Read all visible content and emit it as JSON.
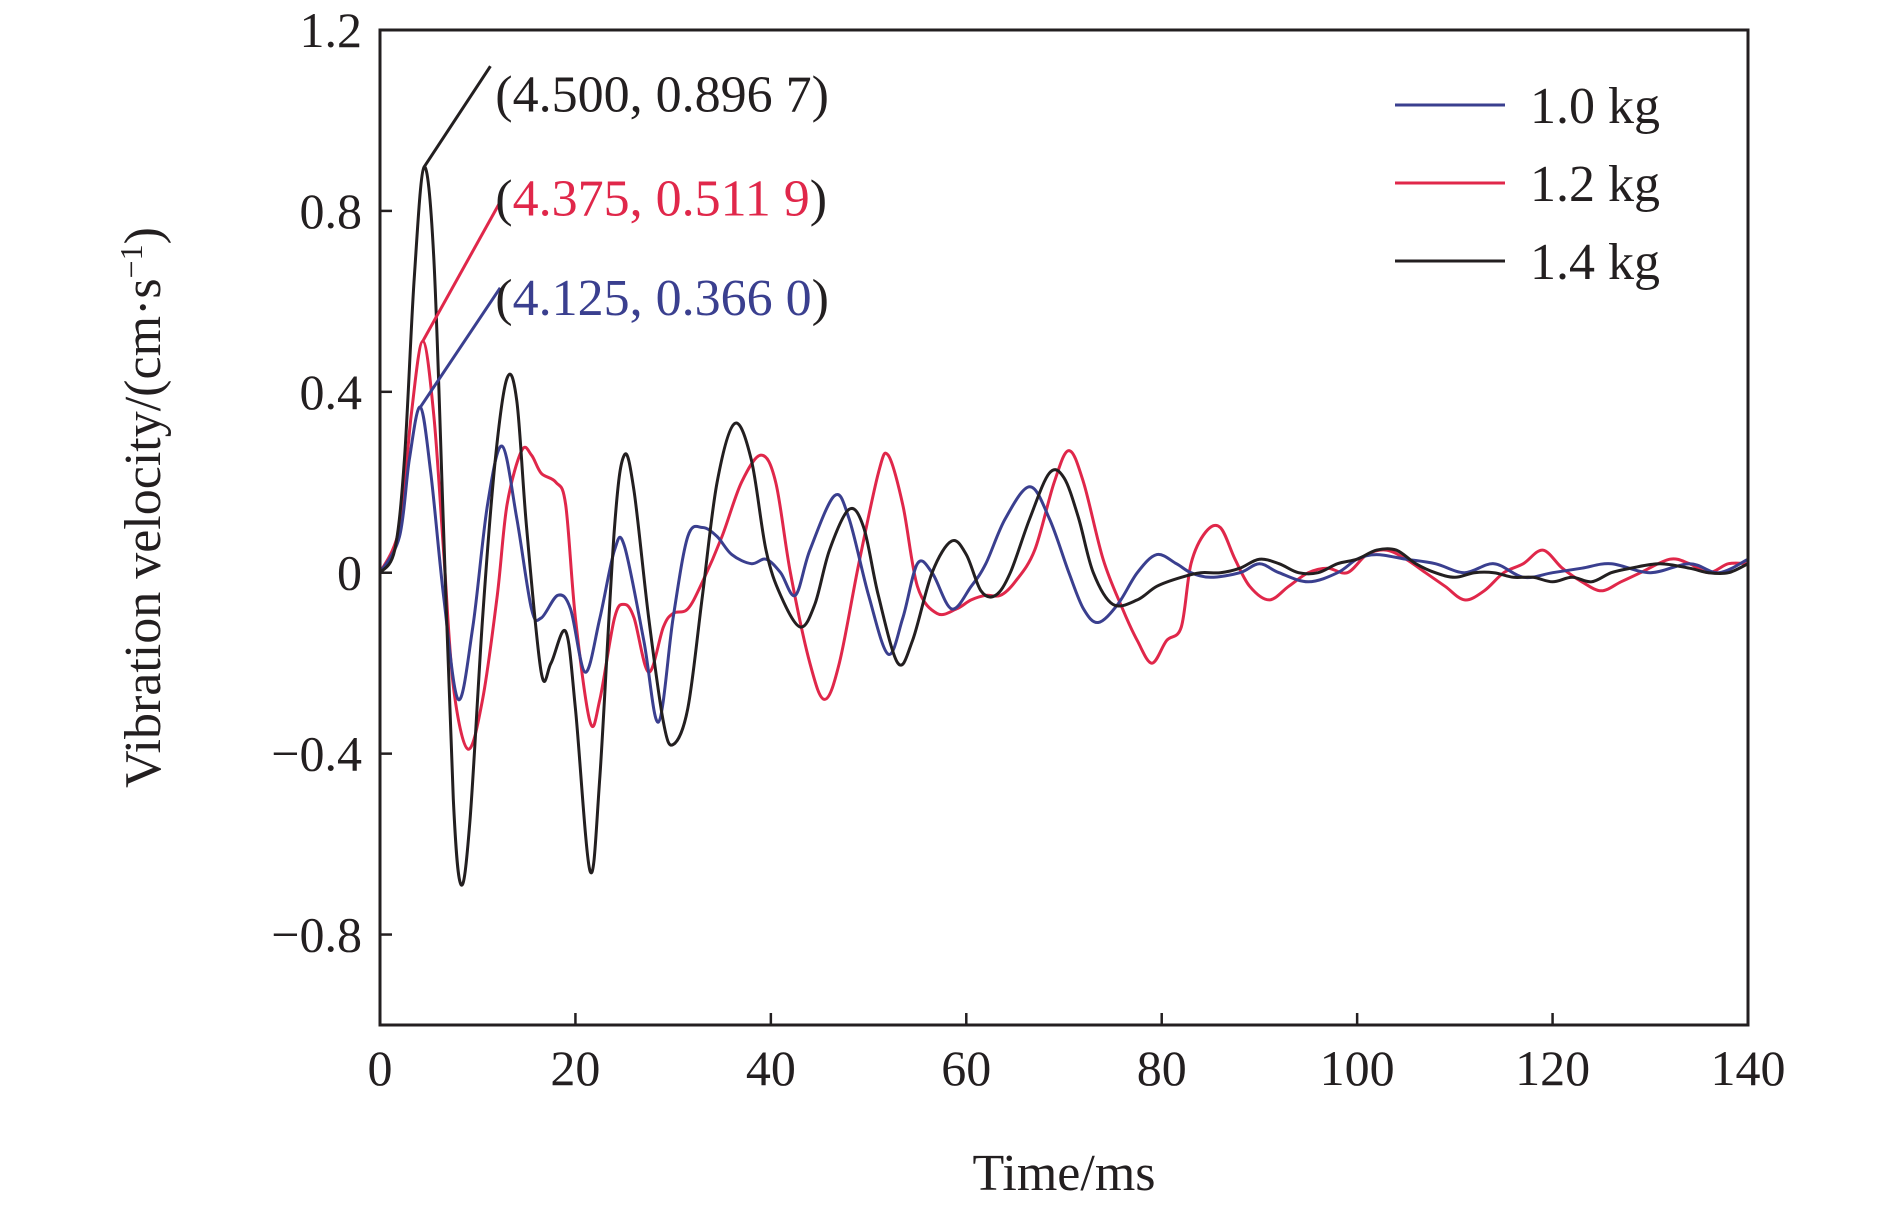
{
  "chart_data": {
    "type": "line",
    "xlabel": "Time/ms",
    "ylabel": "Vibration velocity/(cm·s",
    "ylabel_sup": "−1",
    "ylabel_close": ")",
    "xlim": [
      0,
      140
    ],
    "ylim": [
      -1.0,
      1.2
    ],
    "xticks": [
      0,
      20,
      40,
      60,
      80,
      100,
      120,
      140
    ],
    "xtick_labels": [
      "0",
      "20",
      "40",
      "60",
      "80",
      "100",
      "120",
      "140"
    ],
    "yticks": [
      -0.8,
      -0.4,
      0,
      0.4,
      0.8,
      1.2
    ],
    "ytick_labels": [
      "−0.8",
      "−0.4",
      "0",
      "0.4",
      "0.8",
      "1.2"
    ],
    "grid": false,
    "legend_position": "top-right",
    "series": [
      {
        "name": "1.0 kg",
        "color": "#3a3f8f",
        "points": [
          [
            0,
            0
          ],
          [
            2,
            0.08
          ],
          [
            3,
            0.25
          ],
          [
            4.125,
            0.366
          ],
          [
            5.2,
            0.22
          ],
          [
            6.5,
            -0.05
          ],
          [
            8,
            -0.28
          ],
          [
            9.5,
            -0.12
          ],
          [
            11,
            0.15
          ],
          [
            12.5,
            0.28
          ],
          [
            14,
            0.12
          ],
          [
            15.5,
            -0.08
          ],
          [
            16.5,
            -0.1
          ],
          [
            18.2,
            -0.05
          ],
          [
            19.5,
            -0.08
          ],
          [
            21,
            -0.22
          ],
          [
            22.5,
            -0.1
          ],
          [
            24,
            0.05
          ],
          [
            25,
            0.06
          ],
          [
            27,
            -0.15
          ],
          [
            28.5,
            -0.33
          ],
          [
            30,
            -0.1
          ],
          [
            31.5,
            0.08
          ],
          [
            33,
            0.1
          ],
          [
            34.5,
            0.08
          ],
          [
            36,
            0.04
          ],
          [
            38,
            0.02
          ],
          [
            39.5,
            0.03
          ],
          [
            41,
            0.0
          ],
          [
            42.5,
            -0.05
          ],
          [
            44,
            0.05
          ],
          [
            46.5,
            0.17
          ],
          [
            48,
            0.12
          ],
          [
            50,
            -0.05
          ],
          [
            52,
            -0.18
          ],
          [
            53.5,
            -0.1
          ],
          [
            55,
            0.02
          ],
          [
            56.5,
            0.0
          ],
          [
            58.5,
            -0.08
          ],
          [
            60.5,
            -0.03
          ],
          [
            62,
            0.02
          ],
          [
            64,
            0.12
          ],
          [
            66.5,
            0.19
          ],
          [
            68.5,
            0.12
          ],
          [
            70.5,
            0.0
          ],
          [
            72,
            -0.08
          ],
          [
            73.5,
            -0.11
          ],
          [
            75.5,
            -0.07
          ],
          [
            77.5,
            0.0
          ],
          [
            79.5,
            0.04
          ],
          [
            81.5,
            0.02
          ],
          [
            83,
            0.0
          ],
          [
            85,
            -0.01
          ],
          [
            88,
            0.0
          ],
          [
            90,
            0.02
          ],
          [
            92,
            0.0
          ],
          [
            95,
            -0.02
          ],
          [
            98,
            0.0
          ],
          [
            100,
            0.03
          ],
          [
            102,
            0.04
          ],
          [
            105,
            0.03
          ],
          [
            108,
            0.02
          ],
          [
            111,
            0.0
          ],
          [
            114,
            0.02
          ],
          [
            117,
            -0.01
          ],
          [
            120,
            0.0
          ],
          [
            123,
            0.01
          ],
          [
            126,
            0.02
          ],
          [
            130,
            0.0
          ],
          [
            134,
            0.02
          ],
          [
            137,
            0.0
          ],
          [
            140,
            0.03
          ]
        ]
      },
      {
        "name": "1.2 kg",
        "color": "#e0274a",
        "points": [
          [
            0,
            0
          ],
          [
            2,
            0.1
          ],
          [
            3.2,
            0.35
          ],
          [
            4.375,
            0.5119
          ],
          [
            5.5,
            0.35
          ],
          [
            6.5,
            0.05
          ],
          [
            7.5,
            -0.25
          ],
          [
            9,
            -0.39
          ],
          [
            10.5,
            -0.28
          ],
          [
            12,
            -0.05
          ],
          [
            13,
            0.15
          ],
          [
            14.5,
            0.27
          ],
          [
            15.5,
            0.26
          ],
          [
            16.5,
            0.22
          ],
          [
            18,
            0.2
          ],
          [
            19,
            0.15
          ],
          [
            20,
            -0.1
          ],
          [
            21.5,
            -0.33
          ],
          [
            22.5,
            -0.28
          ],
          [
            24,
            -0.1
          ],
          [
            25,
            -0.07
          ],
          [
            26,
            -0.1
          ],
          [
            27.5,
            -0.22
          ],
          [
            29,
            -0.12
          ],
          [
            30,
            -0.09
          ],
          [
            31.5,
            -0.08
          ],
          [
            33,
            -0.02
          ],
          [
            35,
            0.08
          ],
          [
            37,
            0.2
          ],
          [
            39,
            0.26
          ],
          [
            40.5,
            0.2
          ],
          [
            42,
            0.0
          ],
          [
            44,
            -0.2
          ],
          [
            45.5,
            -0.28
          ],
          [
            47,
            -0.2
          ],
          [
            49,
            0.02
          ],
          [
            51,
            0.22
          ],
          [
            52,
            0.26
          ],
          [
            53.5,
            0.15
          ],
          [
            55,
            -0.03
          ],
          [
            57,
            -0.09
          ],
          [
            59,
            -0.08
          ],
          [
            60.5,
            -0.06
          ],
          [
            62,
            -0.05
          ],
          [
            63.5,
            -0.05
          ],
          [
            65,
            -0.02
          ],
          [
            67,
            0.05
          ],
          [
            69,
            0.2
          ],
          [
            70.5,
            0.27
          ],
          [
            72,
            0.2
          ],
          [
            74,
            0.03
          ],
          [
            76,
            -0.08
          ],
          [
            77.5,
            -0.15
          ],
          [
            79,
            -0.2
          ],
          [
            80.5,
            -0.15
          ],
          [
            82,
            -0.12
          ],
          [
            83,
            0.02
          ],
          [
            84.5,
            0.09
          ],
          [
            86,
            0.1
          ],
          [
            87.5,
            0.03
          ],
          [
            89,
            -0.03
          ],
          [
            91,
            -0.06
          ],
          [
            93,
            -0.03
          ],
          [
            95,
            0.0
          ],
          [
            97,
            0.01
          ],
          [
            99,
            0.0
          ],
          [
            101,
            0.04
          ],
          [
            103,
            0.05
          ],
          [
            105,
            0.03
          ],
          [
            107,
            0.0
          ],
          [
            109,
            -0.03
          ],
          [
            111,
            -0.06
          ],
          [
            113,
            -0.04
          ],
          [
            115,
            0.0
          ],
          [
            117,
            0.02
          ],
          [
            119,
            0.05
          ],
          [
            121,
            0.01
          ],
          [
            123,
            -0.02
          ],
          [
            125,
            -0.04
          ],
          [
            127,
            -0.02
          ],
          [
            129,
            0.0
          ],
          [
            132,
            0.03
          ],
          [
            134,
            0.02
          ],
          [
            136,
            0.0
          ],
          [
            138,
            0.02
          ],
          [
            140,
            0.02
          ]
        ]
      },
      {
        "name": "1.4 kg",
        "color": "#231f20",
        "points": [
          [
            0,
            0
          ],
          [
            1.5,
            0.05
          ],
          [
            2.5,
            0.25
          ],
          [
            3.5,
            0.65
          ],
          [
            4.5,
            0.8967
          ],
          [
            5.5,
            0.7
          ],
          [
            6.5,
            0.1
          ],
          [
            7.5,
            -0.5
          ],
          [
            8.3,
            -0.69
          ],
          [
            9.2,
            -0.55
          ],
          [
            10.5,
            -0.1
          ],
          [
            11.8,
            0.25
          ],
          [
            13,
            0.43
          ],
          [
            14,
            0.38
          ],
          [
            15,
            0.1
          ],
          [
            16.5,
            -0.22
          ],
          [
            17.5,
            -0.2
          ],
          [
            19,
            -0.13
          ],
          [
            20,
            -0.3
          ],
          [
            21.5,
            -0.66
          ],
          [
            22.5,
            -0.45
          ],
          [
            24,
            0.1
          ],
          [
            25,
            0.26
          ],
          [
            26,
            0.18
          ],
          [
            27.5,
            -0.1
          ],
          [
            29,
            -0.33
          ],
          [
            30,
            -0.38
          ],
          [
            31.5,
            -0.3
          ],
          [
            33,
            -0.05
          ],
          [
            34.5,
            0.2
          ],
          [
            36.3,
            0.33
          ],
          [
            38,
            0.25
          ],
          [
            39.5,
            0.05
          ],
          [
            41,
            -0.05
          ],
          [
            43,
            -0.12
          ],
          [
            44.5,
            -0.07
          ],
          [
            46,
            0.05
          ],
          [
            48,
            0.14
          ],
          [
            49.5,
            0.1
          ],
          [
            51,
            -0.05
          ],
          [
            53,
            -0.2
          ],
          [
            54.5,
            -0.15
          ],
          [
            56.5,
            0.0
          ],
          [
            58.5,
            0.07
          ],
          [
            60,
            0.04
          ],
          [
            61.5,
            -0.04
          ],
          [
            63,
            -0.05
          ],
          [
            64.5,
            0.0
          ],
          [
            66.5,
            0.12
          ],
          [
            68.5,
            0.22
          ],
          [
            70,
            0.21
          ],
          [
            71.5,
            0.12
          ],
          [
            73,
            0.0
          ],
          [
            75,
            -0.07
          ],
          [
            77.5,
            -0.06
          ],
          [
            79.5,
            -0.03
          ],
          [
            82,
            -0.01
          ],
          [
            84,
            0.0
          ],
          [
            86,
            0.0
          ],
          [
            88,
            0.01
          ],
          [
            90,
            0.03
          ],
          [
            92,
            0.02
          ],
          [
            94,
            0.0
          ],
          [
            96,
            0.0
          ],
          [
            98,
            0.02
          ],
          [
            100,
            0.03
          ],
          [
            102,
            0.05
          ],
          [
            104,
            0.05
          ],
          [
            106,
            0.02
          ],
          [
            108,
            0.0
          ],
          [
            110,
            -0.01
          ],
          [
            112,
            0.0
          ],
          [
            114,
            0.0
          ],
          [
            116,
            -0.01
          ],
          [
            118,
            -0.01
          ],
          [
            120,
            -0.02
          ],
          [
            122,
            -0.01
          ],
          [
            124,
            -0.02
          ],
          [
            126,
            0.0
          ],
          [
            128,
            0.01
          ],
          [
            131,
            0.02
          ],
          [
            134,
            0.01
          ],
          [
            136,
            0.0
          ],
          [
            138,
            0.0
          ],
          [
            140,
            0.02
          ]
        ]
      }
    ],
    "annotations": [
      {
        "label_parts": [
          {
            "text": "(4.500, 0.896 7)",
            "color": "#231f20"
          }
        ],
        "point": [
          4.5,
          0.8967
        ],
        "line_color": "#231f20",
        "label_data_pos": [
          11.8,
          1.02
        ],
        "leader_end": [
          11.3,
          1.12
        ]
      },
      {
        "label_parts": [
          {
            "text": "(",
            "color": "#231f20"
          },
          {
            "text": "4.375, 0.511 9",
            "color": "#e0274a"
          },
          {
            "text": ")",
            "color": "#231f20"
          }
        ],
        "point": [
          4.375,
          0.5119
        ],
        "line_color": "#e0274a",
        "label_data_pos": [
          11.8,
          0.79
        ],
        "leader_end": [
          12.3,
          0.82
        ]
      },
      {
        "label_parts": [
          {
            "text": "(",
            "color": "#231f20"
          },
          {
            "text": "4.125, 0.366 0",
            "color": "#3a3f8f"
          },
          {
            "text": ")",
            "color": "#231f20"
          }
        ],
        "point": [
          4.125,
          0.366
        ],
        "line_color": "#3a3f8f",
        "label_data_pos": [
          11.8,
          0.57
        ],
        "leader_end": [
          12.3,
          0.63
        ]
      }
    ]
  }
}
